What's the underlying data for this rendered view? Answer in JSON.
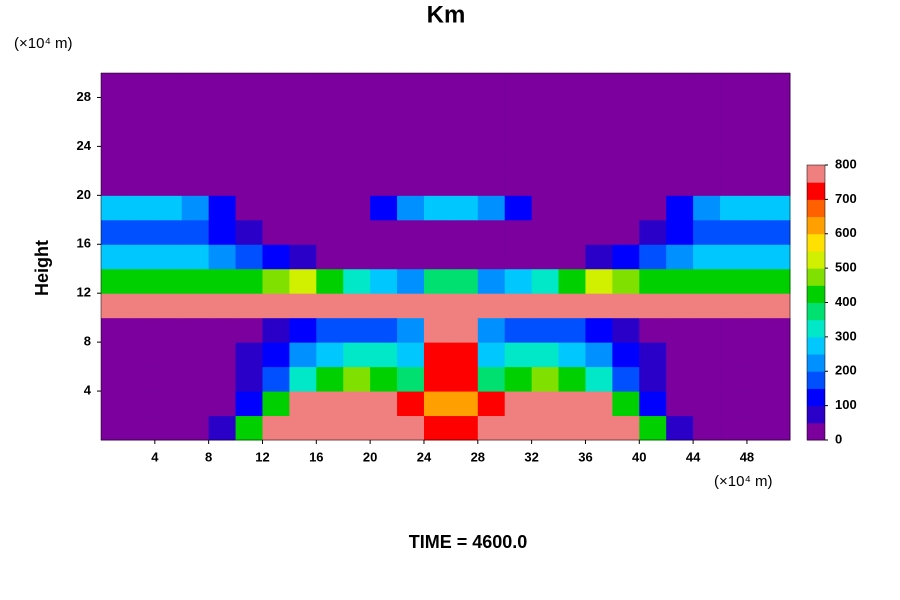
{
  "chart_data": {
    "type": "contour",
    "title": "Km",
    "y_label": "Height",
    "y_unit": "(×10⁴ m)",
    "x_unit": "(×10⁴ m)",
    "time_label": "TIME = 4600.0",
    "xlim": [
      0,
      51.2
    ],
    "ylim": [
      0,
      30
    ],
    "xticks": [
      4,
      8,
      12,
      16,
      20,
      24,
      28,
      32,
      36,
      40,
      44,
      48
    ],
    "yticks": [
      4,
      8,
      12,
      16,
      20,
      24,
      28
    ],
    "grid": false,
    "clim": [
      0,
      800
    ],
    "cticks": [
      0,
      100,
      200,
      300,
      400,
      500,
      600,
      700,
      800
    ],
    "colors": [
      "#7b009e",
      "#2a00c8",
      "#0000ff",
      "#0050ff",
      "#0090ff",
      "#00c8ff",
      "#00e8c8",
      "#00e070",
      "#00d000",
      "#80e000",
      "#d0f000",
      "#ffe000",
      "#ffa000",
      "#ff6000",
      "#ff0000",
      "#f08080"
    ],
    "x": [
      1,
      3,
      5,
      7,
      9,
      11,
      13,
      15,
      17,
      19,
      21,
      23,
      25,
      27,
      29,
      31,
      33,
      35,
      37,
      39,
      41,
      43,
      45,
      47,
      49,
      51
    ],
    "y": [
      1,
      3,
      5,
      7,
      9,
      11,
      13,
      15,
      17,
      19,
      21,
      23,
      25,
      27,
      29
    ],
    "z": [
      [
        0,
        0,
        0,
        0,
        50,
        400,
        800,
        800,
        800,
        800,
        800,
        800,
        700,
        700,
        800,
        800,
        800,
        800,
        800,
        800,
        400,
        50,
        0,
        0,
        0,
        0
      ],
      [
        0,
        0,
        0,
        0,
        0,
        100,
        400,
        800,
        800,
        800,
        800,
        700,
        600,
        600,
        700,
        800,
        800,
        800,
        800,
        400,
        100,
        0,
        0,
        0,
        0,
        0
      ],
      [
        0,
        0,
        0,
        0,
        0,
        50,
        150,
        300,
        400,
        450,
        400,
        350,
        700,
        700,
        350,
        400,
        450,
        400,
        300,
        150,
        50,
        0,
        0,
        0,
        0,
        0
      ],
      [
        0,
        0,
        0,
        0,
        0,
        50,
        100,
        200,
        250,
        300,
        300,
        250,
        700,
        700,
        250,
        300,
        300,
        250,
        200,
        100,
        50,
        0,
        0,
        0,
        0,
        0
      ],
      [
        0,
        0,
        0,
        0,
        0,
        0,
        50,
        100,
        150,
        150,
        150,
        200,
        750,
        750,
        200,
        150,
        150,
        150,
        100,
        50,
        0,
        0,
        0,
        0,
        0,
        0
      ],
      [
        800,
        800,
        800,
        800,
        800,
        800,
        800,
        800,
        800,
        800,
        800,
        800,
        800,
        800,
        800,
        800,
        800,
        800,
        800,
        800,
        800,
        800,
        800,
        800,
        800,
        800
      ],
      [
        400,
        400,
        400,
        400,
        400,
        400,
        450,
        500,
        400,
        300,
        250,
        200,
        350,
        350,
        200,
        250,
        300,
        400,
        500,
        450,
        400,
        400,
        400,
        400,
        400,
        400
      ],
      [
        250,
        250,
        250,
        250,
        200,
        150,
        100,
        50,
        0,
        0,
        0,
        0,
        0,
        0,
        0,
        0,
        0,
        0,
        50,
        100,
        150,
        200,
        250,
        250,
        250,
        250
      ],
      [
        150,
        150,
        150,
        150,
        100,
        50,
        0,
        0,
        0,
        0,
        0,
        0,
        0,
        0,
        0,
        0,
        0,
        0,
        0,
        0,
        50,
        100,
        150,
        150,
        150,
        150
      ],
      [
        250,
        250,
        250,
        200,
        100,
        0,
        0,
        0,
        0,
        0,
        100,
        200,
        250,
        250,
        200,
        100,
        0,
        0,
        0,
        0,
        0,
        100,
        200,
        250,
        250,
        250
      ],
      [
        0,
        0,
        0,
        0,
        0,
        0,
        0,
        0,
        0,
        0,
        0,
        0,
        0,
        0,
        0,
        0,
        0,
        0,
        0,
        0,
        0,
        0,
        0,
        0,
        0,
        0
      ],
      [
        0,
        0,
        0,
        0,
        0,
        0,
        0,
        0,
        0,
        0,
        0,
        0,
        0,
        0,
        0,
        0,
        0,
        0,
        0,
        0,
        0,
        0,
        0,
        0,
        0,
        0
      ],
      [
        0,
        0,
        0,
        0,
        0,
        0,
        0,
        0,
        0,
        0,
        0,
        0,
        0,
        0,
        0,
        0,
        0,
        0,
        0,
        0,
        0,
        0,
        0,
        0,
        0,
        0
      ],
      [
        0,
        0,
        0,
        0,
        0,
        0,
        0,
        0,
        0,
        0,
        0,
        0,
        0,
        0,
        0,
        0,
        0,
        0,
        0,
        0,
        0,
        0,
        0,
        0,
        0,
        0
      ],
      [
        0,
        0,
        0,
        0,
        0,
        0,
        0,
        0,
        0,
        0,
        0,
        0,
        0,
        0,
        0,
        0,
        0,
        0,
        0,
        0,
        0,
        0,
        0,
        0,
        0,
        0
      ]
    ]
  }
}
